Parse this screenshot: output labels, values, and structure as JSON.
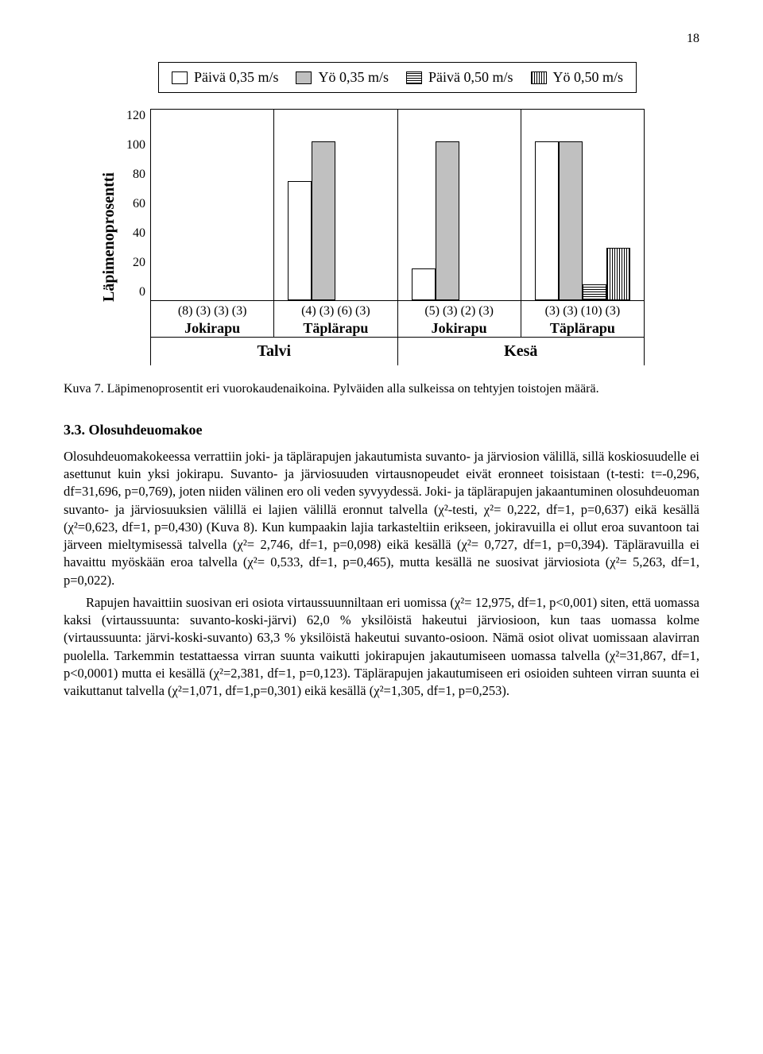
{
  "page_number": "18",
  "legend": {
    "items": [
      {
        "label": "Päivä 0,35 m/s",
        "fill": "white"
      },
      {
        "label": "Yö 0,35 m/s",
        "fill": "gray"
      },
      {
        "label": "Päivä 0,50 m/s",
        "fill": "hstripe"
      },
      {
        "label": "Yö 0,50 m/s",
        "fill": "vstripe"
      }
    ]
  },
  "chart": {
    "y_label": "Läpimenoprosentti",
    "y_max": 120,
    "y_ticks": [
      "120",
      "100",
      "80",
      "60",
      "40",
      "20",
      "0"
    ],
    "seasons": [
      "Talvi",
      "Kesä"
    ],
    "groups": [
      {
        "counts": "(8) (3) (3) (3)",
        "species": "Jokirapu",
        "bars": [
          {
            "fill": "white",
            "value": 0
          },
          {
            "fill": "gray",
            "value": 0
          },
          {
            "fill": "hstripe",
            "value": 0
          },
          {
            "fill": "vstripe",
            "value": 0
          }
        ]
      },
      {
        "counts": "(4) (3) (6) (3)",
        "species": "Täplärapu",
        "bars": [
          {
            "fill": "white",
            "value": 75
          },
          {
            "fill": "gray",
            "value": 100
          },
          {
            "fill": "hstripe",
            "value": 0
          },
          {
            "fill": "vstripe",
            "value": 0
          }
        ]
      },
      {
        "counts": "(5) (3) (2) (3)",
        "species": "Jokirapu",
        "bars": [
          {
            "fill": "white",
            "value": 20
          },
          {
            "fill": "gray",
            "value": 100
          },
          {
            "fill": "hstripe",
            "value": 0
          },
          {
            "fill": "vstripe",
            "value": 0
          }
        ]
      },
      {
        "counts": "(3) (3) (10) (3)",
        "species": "Täplärapu",
        "bars": [
          {
            "fill": "white",
            "value": 100
          },
          {
            "fill": "gray",
            "value": 100
          },
          {
            "fill": "hstripe",
            "value": 10
          },
          {
            "fill": "vstripe",
            "value": 33
          }
        ]
      }
    ]
  },
  "caption": "Kuva 7. Läpimenoprosentit eri vuorokaudenaikoina. Pylväiden alla sulkeissa on tehtyjen toistojen määrä.",
  "section": {
    "number": "3.3. Olosuhdeuomakoe"
  },
  "para1": "Olosuhdeuomakokeessa verrattiin joki- ja täplärapujen jakautumista suvanto- ja järviosion välillä, sillä koskiosuudelle ei asettunut kuin yksi jokirapu. Suvanto- ja järviosuuden virtausnopeudet eivät eronneet toisistaan (t-testi: t=-0,296, df=31,696, p=0,769), joten niiden välinen ero oli veden syvyydessä. Joki- ja täplärapujen jakaantuminen olosuhdeuoman suvanto- ja järviosuuksien välillä ei lajien välillä eronnut talvella (χ²-testi, χ²= 0,222, df=1, p=0,637) eikä kesällä (χ²=0,623, df=1, p=0,430) (Kuva 8). Kun kumpaakin lajia tarkasteltiin erikseen, jokiravuilla ei ollut eroa suvantoon tai järveen mieltymisessä talvella (χ²= 2,746, df=1, p=0,098) eikä kesällä (χ²= 0,727, df=1, p=0,394). Täpläravuilla ei havaittu myöskään eroa talvella (χ²= 0,533, df=1, p=0,465), mutta kesällä ne suosivat järviosiota (χ²= 5,263, df=1, p=0,022).",
  "para2": "Rapujen havaittiin suosivan eri osiota virtaussuunniltaan eri uomissa (χ²= 12,975, df=1, p<0,001) siten, että uomassa kaksi (virtaussuunta: suvanto-koski-järvi) 62,0 % yksilöistä hakeutui järviosioon, kun taas uomassa kolme (virtaussuunta: järvi-koski-suvanto) 63,3 % yksilöistä hakeutui suvanto-osioon. Nämä osiot olivat uomissaan alavirran puolella. Tarkemmin testattaessa virran suunta vaikutti jokirapujen jakautumiseen uomassa talvella (χ²=31,867, df=1, p<0,0001) mutta ei kesällä (χ²=2,381, df=1, p=0,123). Täplärapujen jakautumiseen eri osioiden suhteen virran suunta ei vaikuttanut talvella (χ²=1,071, df=1,p=0,301) eikä kesällä (χ²=1,305, df=1, p=0,253)."
}
